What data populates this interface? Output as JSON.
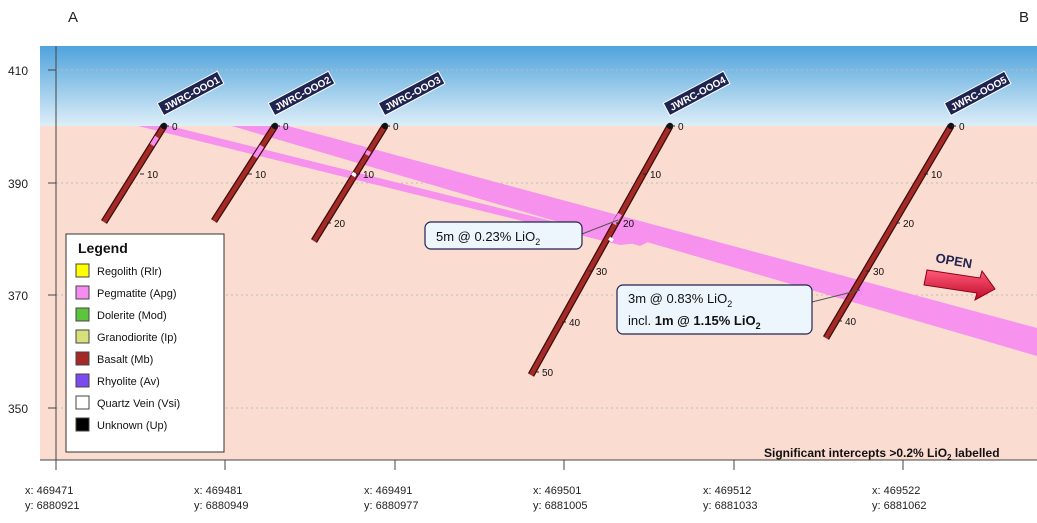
{
  "section": {
    "start_label": "A",
    "end_label": "B"
  },
  "y_axis": {
    "ticks": [
      "410",
      "390",
      "370",
      "350"
    ]
  },
  "x_axis": {
    "ticks": [
      {
        "x": "x: 469471",
        "y": "y: 6880921"
      },
      {
        "x": "x: 469481",
        "y": "y: 6880949"
      },
      {
        "x": "x: 469491",
        "y": "y: 6880977"
      },
      {
        "x": "x: 469501",
        "y": "y: 6881005"
      },
      {
        "x": "x: 469512",
        "y": "y: 6881033"
      },
      {
        "x": "x: 469522",
        "y": "y: 6881062"
      }
    ]
  },
  "holes": [
    {
      "name": "JWRC-OOO1",
      "depth_labels": [
        "0",
        "10"
      ]
    },
    {
      "name": "JWRC-OOO2",
      "depth_labels": [
        "0",
        "10"
      ]
    },
    {
      "name": "JWRC-OOO3",
      "depth_labels": [
        "0",
        "10",
        "20"
      ]
    },
    {
      "name": "JWRC-OOO4",
      "depth_labels": [
        "0",
        "10",
        "20",
        "30",
        "40",
        "50"
      ]
    },
    {
      "name": "JWRC-OOO5",
      "depth_labels": [
        "0",
        "10",
        "20",
        "30",
        "40"
      ]
    }
  ],
  "intercepts": [
    {
      "text": "5m @ 0.23% LiO",
      "sub": "2"
    },
    {
      "line1": "3m @ 0.83% LiO",
      "line1_sub": "2",
      "line2_prefix": "incl. ",
      "line2_bold": "1m @ 1.15% LiO",
      "line2_sub": "2"
    }
  ],
  "open_label": "OPEN",
  "footer_note": {
    "before": "Significant intercepts >0.2% LiO",
    "sub": "2",
    "after": " labelled"
  },
  "legend": {
    "title": "Legend",
    "items": [
      {
        "label": "Regolith (Rlr)",
        "color": "#ffff00"
      },
      {
        "label": "Pegmatite (Apg)",
        "color": "#f68bf0"
      },
      {
        "label": "Dolerite (Mod)",
        "color": "#5cc53b"
      },
      {
        "label": "Granodiorite (Ip)",
        "color": "#d7e07a"
      },
      {
        "label": "Basalt (Mb)",
        "color": "#a52a26"
      },
      {
        "label": "Rhyolite (Av)",
        "color": "#7b4af0"
      },
      {
        "label": "Quartz Vein (Vsi)",
        "color": "#ffffff"
      },
      {
        "label": "Unknown (Up)",
        "color": "#000000"
      }
    ]
  },
  "colors": {
    "sky_top": "#4fa3dc",
    "ground": "#fbdcd0",
    "pegmatite": "#f68bf0",
    "basalt": "#a52a26",
    "open_arrow": "#e8123c",
    "label_box": "#1f2350"
  }
}
